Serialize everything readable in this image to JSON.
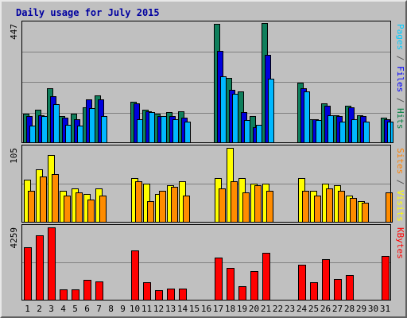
{
  "chart_data": {
    "type": "bar",
    "title": "Daily usage for July 2015",
    "categories": [
      "1",
      "2",
      "3",
      "4",
      "5",
      "6",
      "7",
      "8",
      "9",
      "10",
      "11",
      "12",
      "13",
      "14",
      "15",
      "16",
      "17",
      "18",
      "19",
      "20",
      "21",
      "22",
      "23",
      "24",
      "25",
      "26",
      "27",
      "28",
      "29",
      "30",
      "31"
    ],
    "weekend_days": [
      "4",
      "5",
      "11",
      "12",
      "18",
      "19",
      "25",
      "26"
    ],
    "panels": [
      {
        "id": "hits",
        "scale_label": "447",
        "ylim": [
          0,
          447
        ],
        "legend": [
          {
            "text": "Pages",
            "color": "#00ccff"
          },
          {
            "text": " / ",
            "color": "#555555"
          },
          {
            "text": "Files",
            "color": "#0000ff"
          },
          {
            "text": " / ",
            "color": "#555555"
          },
          {
            "text": "Hits",
            "color": "#008040"
          }
        ],
        "series": [
          {
            "name": "Hits",
            "color": "#0f7f5c",
            "values": [
              110,
              125,
              205,
              100,
              110,
              135,
              178,
              0,
              0,
              155,
              125,
              110,
              115,
              120,
              0,
              0,
              447,
              245,
              195,
              100,
              450,
              0,
              0,
              225,
              90,
              150,
              105,
              140,
              105,
              0,
              96
            ]
          },
          {
            "name": "Files",
            "color": "#0000dd",
            "values": [
              100,
              105,
              175,
              95,
              90,
              165,
              165,
              0,
              0,
              150,
              120,
              100,
              102,
              95,
              0,
              0,
              345,
              200,
              115,
              60,
              330,
              0,
              0,
              205,
              90,
              140,
              100,
              135,
              100,
              0,
              90
            ]
          },
          {
            "name": "Pages",
            "color": "#00b8ff",
            "values": [
              65,
              100,
              145,
              70,
              65,
              130,
              100,
              0,
              0,
              90,
              115,
              100,
              90,
              80,
              0,
              0,
              250,
              185,
              85,
              70,
              240,
              0,
              0,
              195,
              85,
              105,
              80,
              90,
              80,
              0,
              80
            ]
          }
        ]
      },
      {
        "id": "visits",
        "scale_label": "105",
        "ylim": [
          0,
          105
        ],
        "legend": [
          {
            "text": "Sites",
            "color": "#ff8000"
          },
          {
            "text": " / ",
            "color": "#555555"
          },
          {
            "text": "Visits",
            "color": "#ffff00"
          }
        ],
        "series": [
          {
            "name": "Visits",
            "color": "#ffff00",
            "values": [
              60,
              75,
              95,
              45,
              48,
              40,
              48,
              0,
              0,
              63,
              55,
              40,
              53,
              58,
              0,
              0,
              63,
              105,
              62,
              55,
              55,
              0,
              0,
              63,
              45,
              55,
              52,
              38,
              30,
              0,
              0
            ]
          },
          {
            "name": "Sites",
            "color": "#ff8c00",
            "values": [
              45,
              65,
              68,
              38,
              42,
              32,
              38,
              0,
              0,
              58,
              30,
              45,
              50,
              38,
              0,
              0,
              48,
              58,
              42,
              52,
              45,
              0,
              0,
              45,
              38,
              48,
              45,
              35,
              28,
              0,
              42
            ]
          }
        ]
      },
      {
        "id": "kbytes",
        "scale_label": "4259",
        "ylim": [
          0,
          4259
        ],
        "legend": [
          {
            "text": "KBytes",
            "color": "#ff0000"
          }
        ],
        "series": [
          {
            "name": "KBytes",
            "color": "#ff0000",
            "values": [
              3100,
              3800,
              4259,
              650,
              650,
              1200,
              1100,
              0,
              0,
              2900,
              1050,
              600,
              700,
              700,
              0,
              0,
              2500,
              1900,
              850,
              1700,
              2800,
              0,
              0,
              2100,
              1050,
              2400,
              1250,
              1500,
              0,
              0,
              2600
            ]
          }
        ]
      }
    ]
  }
}
